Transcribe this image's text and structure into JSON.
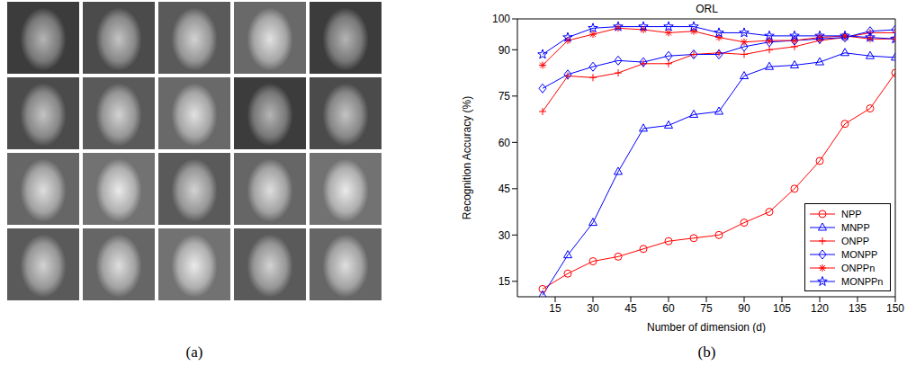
{
  "labels": [
    "(a)",
    "(b)"
  ],
  "chart_data": {
    "type": "line",
    "title": "ORL",
    "x_label": "Number of dimension (d)",
    "y_label": "Recognition Accuracy (%)",
    "x": [
      10,
      20,
      30,
      40,
      50,
      60,
      70,
      80,
      90,
      100,
      110,
      120,
      130,
      140,
      150
    ],
    "series": [
      {
        "name": "NPP",
        "color": "#ff0000",
        "marker": "circle",
        "values": [
          12.5,
          17.5,
          21.5,
          23,
          25.5,
          28,
          29,
          30,
          34,
          37.5,
          45,
          54,
          66,
          71,
          82.5
        ]
      },
      {
        "name": "MNPP",
        "color": "#0000ff",
        "marker": "triangle",
        "values": [
          10.5,
          23.5,
          34,
          50.5,
          64.5,
          65.5,
          69,
          70,
          81.5,
          84.5,
          85,
          86,
          89,
          88,
          87.5
        ]
      },
      {
        "name": "ONPP",
        "color": "#ff0000",
        "marker": "plus",
        "values": [
          70,
          81.5,
          81,
          82.5,
          85.5,
          85.5,
          88.5,
          89,
          88.5,
          90,
          91,
          93,
          94,
          95.5,
          95.5
        ]
      },
      {
        "name": "MONPP",
        "color": "#0000ff",
        "marker": "diamond",
        "values": [
          77.5,
          82,
          84.5,
          86.5,
          86,
          88,
          88.5,
          88.5,
          91,
          92.5,
          93,
          93.5,
          94,
          96,
          96.5
        ]
      },
      {
        "name": "ONPPn",
        "color": "#ff0000",
        "marker": "asterisk",
        "values": [
          85,
          93,
          95,
          97,
          96.5,
          95.5,
          96,
          94,
          92.5,
          93,
          93,
          94,
          94.5,
          93.5,
          93.5
        ]
      },
      {
        "name": "MONPPn",
        "color": "#0000ff",
        "marker": "star",
        "values": [
          88.5,
          94,
          97,
          97.5,
          97.5,
          97.5,
          97.5,
          95.5,
          95.5,
          94.5,
          94.5,
          94.5,
          94.5,
          94,
          93.5
        ]
      }
    ],
    "xlim": [
      0,
      150
    ],
    "xticks": [
      15,
      30,
      45,
      60,
      75,
      90,
      105,
      120,
      135,
      150
    ],
    "ylim": [
      10,
      100
    ],
    "yticks": [
      15,
      30,
      45,
      60,
      75,
      90,
      100
    ],
    "grid": false,
    "legend": "lower right"
  }
}
